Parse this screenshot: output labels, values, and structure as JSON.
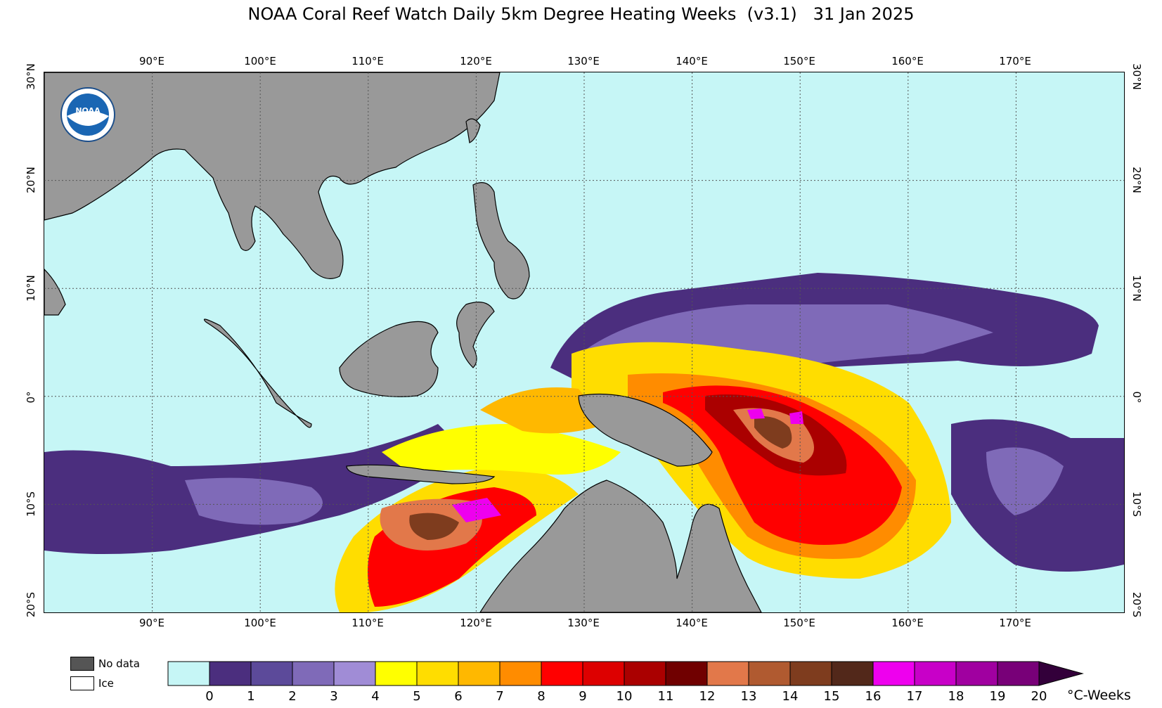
{
  "title": "NOAA Coral Reef Watch Daily 5km Degree Heating Weeks  (v3.1)   31 Jan 2025",
  "map": {
    "lon_range": [
      80,
      180
    ],
    "lat_range": [
      -20,
      30
    ],
    "lon_ticks": [
      "90°E",
      "100°E",
      "110°E",
      "120°E",
      "130°E",
      "140°E",
      "150°E",
      "160°E",
      "170°E"
    ],
    "lat_ticks": [
      "30°N",
      "20°N",
      "10°N",
      "0°",
      "10°S",
      "20°S"
    ],
    "ocean_color": "#c6f6f6",
    "land_color": "#999999",
    "logo": "NOAA"
  },
  "legend": {
    "no_data_label": "No data",
    "ice_label": "Ice",
    "no_data_color": "#555555",
    "ice_color": "#ffffff",
    "unit": "°C-Weeks",
    "ticks": [
      "0",
      "1",
      "2",
      "3",
      "4",
      "5",
      "6",
      "7",
      "8",
      "9",
      "10",
      "11",
      "12",
      "13",
      "14",
      "15",
      "16",
      "17",
      "18",
      "19",
      "20"
    ],
    "colors": [
      "#c6f6f6",
      "#4b2e7e",
      "#5c4a9a",
      "#7f6ab8",
      "#a08cd6",
      "#ffff00",
      "#ffdd00",
      "#ffb800",
      "#ff8c00",
      "#ff0000",
      "#dd0000",
      "#aa0000",
      "#700000",
      "#e2784a",
      "#b05a30",
      "#7e3c1e",
      "#52281a",
      "#ee00ee",
      "#c800c8",
      "#a000a0",
      "#780078",
      "#33003a"
    ]
  }
}
